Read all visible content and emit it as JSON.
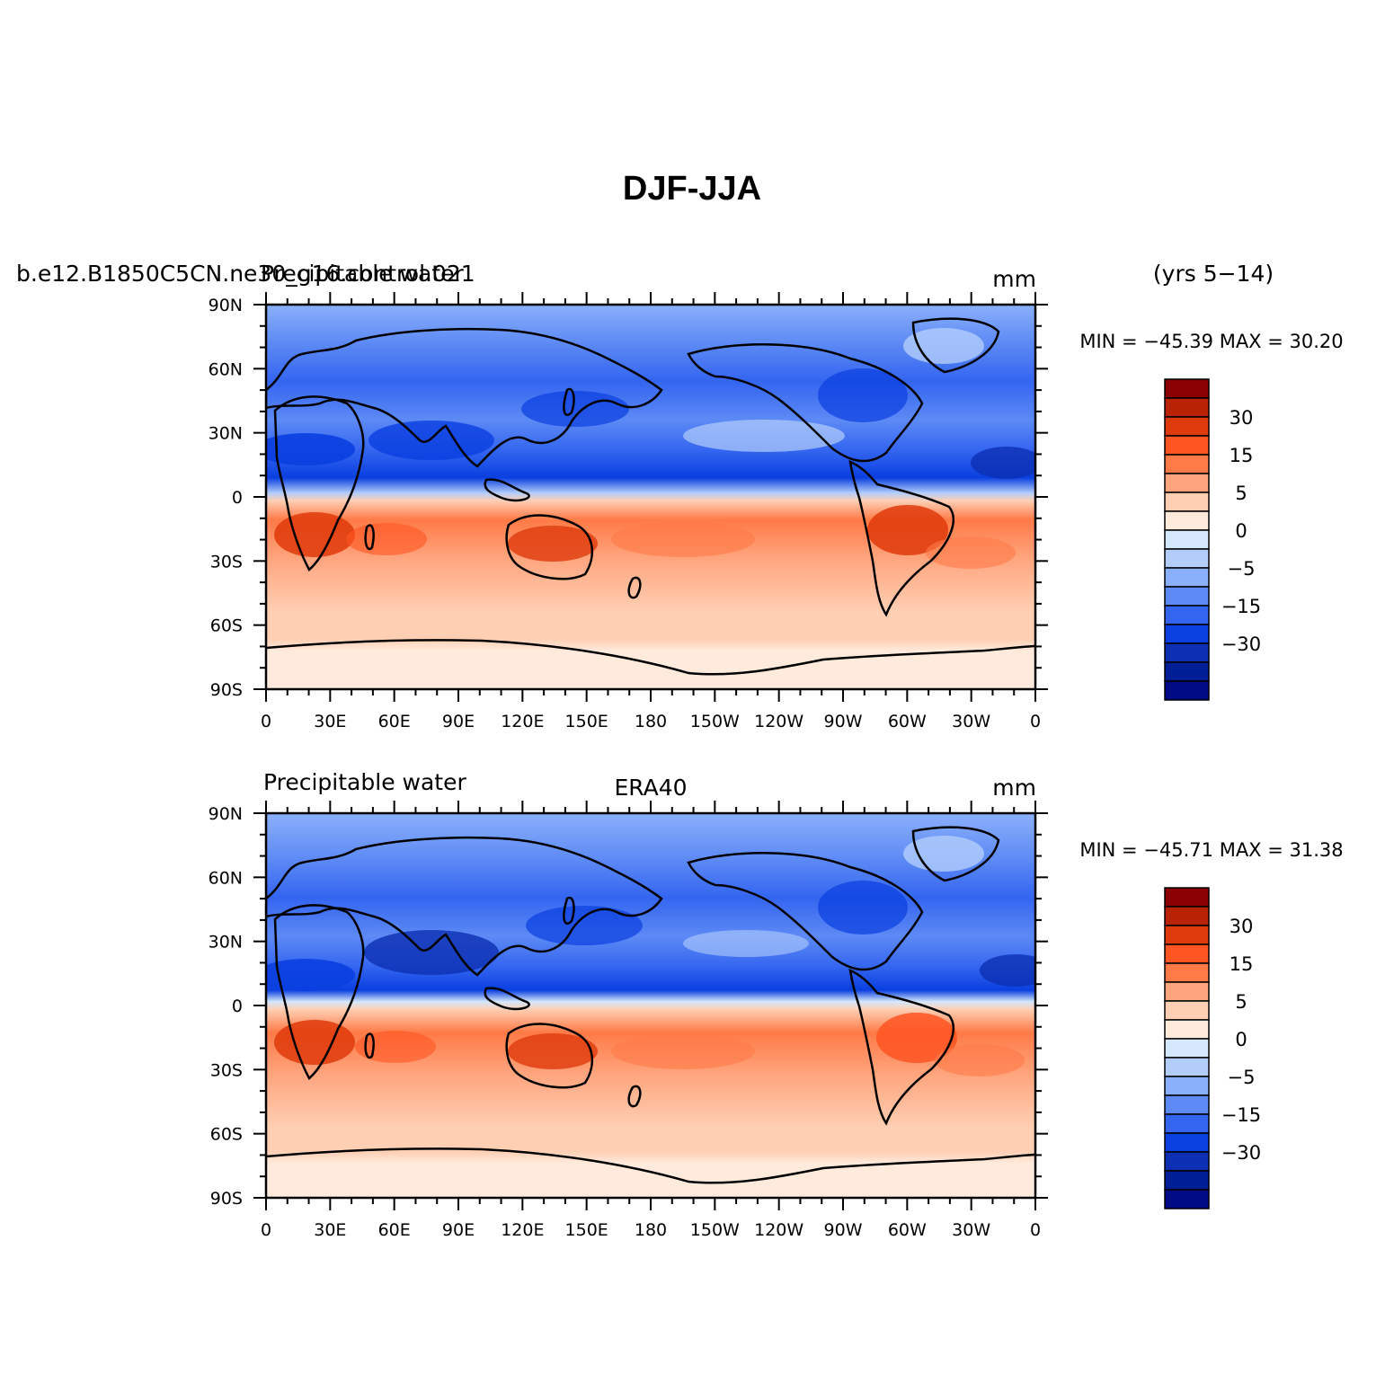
{
  "title": "DJF-JJA",
  "units_label": "mm",
  "x_tick_labels": [
    "0",
    "30E",
    "60E",
    "90E",
    "120E",
    "150E",
    "180",
    "150W",
    "120W",
    "90W",
    "60W",
    "30W",
    "0"
  ],
  "y_tick_labels": [
    "90N",
    "60N",
    "30N",
    "0",
    "30S",
    "60S",
    "90S"
  ],
  "colorbar": {
    "colors": [
      "#8b0000",
      "#b92205",
      "#df3a0b",
      "#ff5522",
      "#ff7a47",
      "#ffa57e",
      "#ffcfb4",
      "#ffeadc",
      "#d4e7fb",
      "#b3cdfb",
      "#8bb0fb",
      "#5d8af5",
      "#3465f0",
      "#0a3fe0",
      "#0d2fb3",
      "#001e96",
      "#000b85"
    ],
    "labels": [
      "30",
      "15",
      "5",
      "0",
      "−5",
      "−15",
      "−30"
    ]
  },
  "panels": [
    {
      "left_title": "b.e12.B1850C5CN.ne30_g16.control.021",
      "left_title_overlap": "Precipitable water",
      "center_title": "",
      "right_title": "mm",
      "side_label": "(yrs 5−14)",
      "minmax": "MIN = −45.39  MAX =  30.20"
    },
    {
      "left_title": "Precipitable water",
      "left_title_overlap": "",
      "center_title": "ERA40",
      "right_title": "mm",
      "side_label": "",
      "minmax": "MIN = −45.71  MAX =  31.38"
    }
  ]
}
